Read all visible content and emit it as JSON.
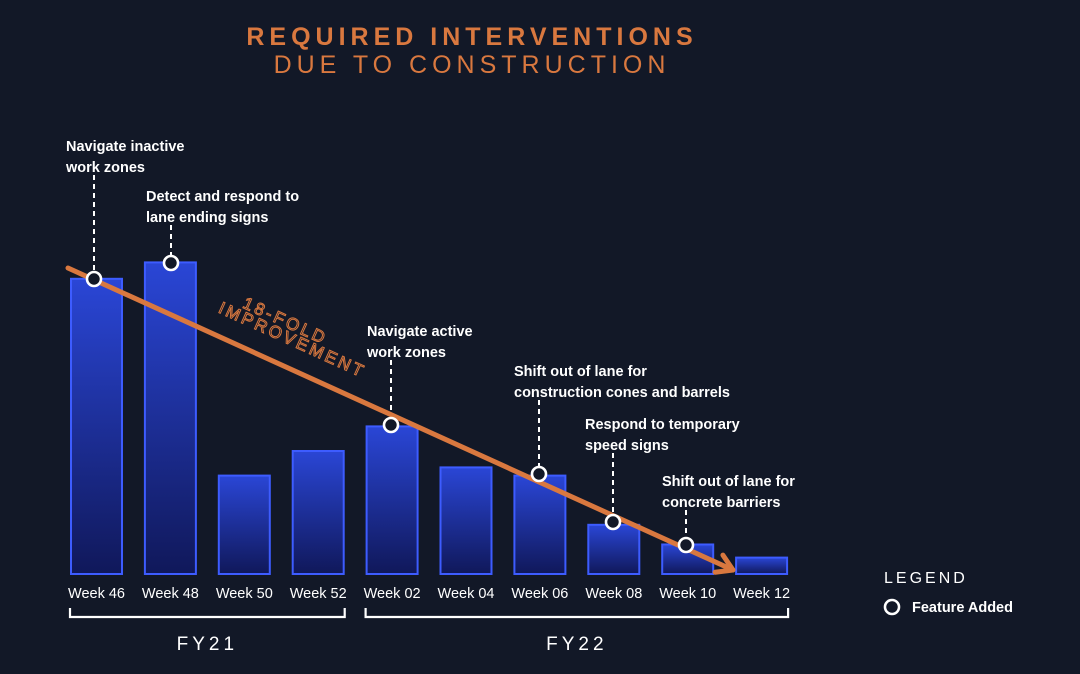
{
  "title": "REQUIRED INTERVENTIONS",
  "subtitle": "DUE TO CONSTRUCTION",
  "colors": {
    "background": "#121827",
    "accent": "#d9783f",
    "bar_top": "#2a46d6",
    "bar_bottom": "#10185a",
    "bar_stroke": "#3d5cff",
    "text": "#ffffff"
  },
  "trend_label": [
    "18-FOLD",
    "IMPROVEMENT"
  ],
  "chart_data": {
    "type": "bar",
    "title": "REQUIRED INTERVENTIONS DUE TO CONSTRUCTION",
    "xlabel": "",
    "ylabel": "",
    "categories": [
      "Week 46",
      "Week 48",
      "Week 50",
      "Week 52",
      "Week 02",
      "Week 04",
      "Week 06",
      "Week 08",
      "Week 10",
      "Week 12"
    ],
    "values": [
      18,
      19,
      6,
      7.5,
      9,
      6.5,
      6,
      3,
      1.8,
      1
    ],
    "ylim": [
      0,
      20
    ],
    "grid": false,
    "fiscal_years": [
      {
        "label": "FY21",
        "from": 0,
        "to": 3
      },
      {
        "label": "FY22",
        "from": 4,
        "to": 9
      }
    ],
    "features": [
      {
        "index": 0,
        "label": [
          "Navigate inactive",
          "work zones"
        ]
      },
      {
        "index": 1,
        "label": [
          "Detect and respond to",
          "lane ending signs"
        ]
      },
      {
        "index": 4,
        "label": [
          "Navigate active",
          "work zones"
        ]
      },
      {
        "index": 6,
        "label": [
          "Shift out of lane for",
          "construction cones and barrels"
        ]
      },
      {
        "index": 7,
        "label": [
          "Respond to temporary",
          "speed signs"
        ]
      },
      {
        "index": 8,
        "label": [
          "Shift out of lane for",
          "concrete barriers"
        ]
      }
    ],
    "trend": {
      "label": "18-FOLD IMPROVEMENT",
      "from_value": 19,
      "to_value": 1
    }
  },
  "legend": {
    "title": "LEGEND",
    "items": [
      {
        "marker": "circle",
        "label": "Feature Added"
      }
    ]
  }
}
